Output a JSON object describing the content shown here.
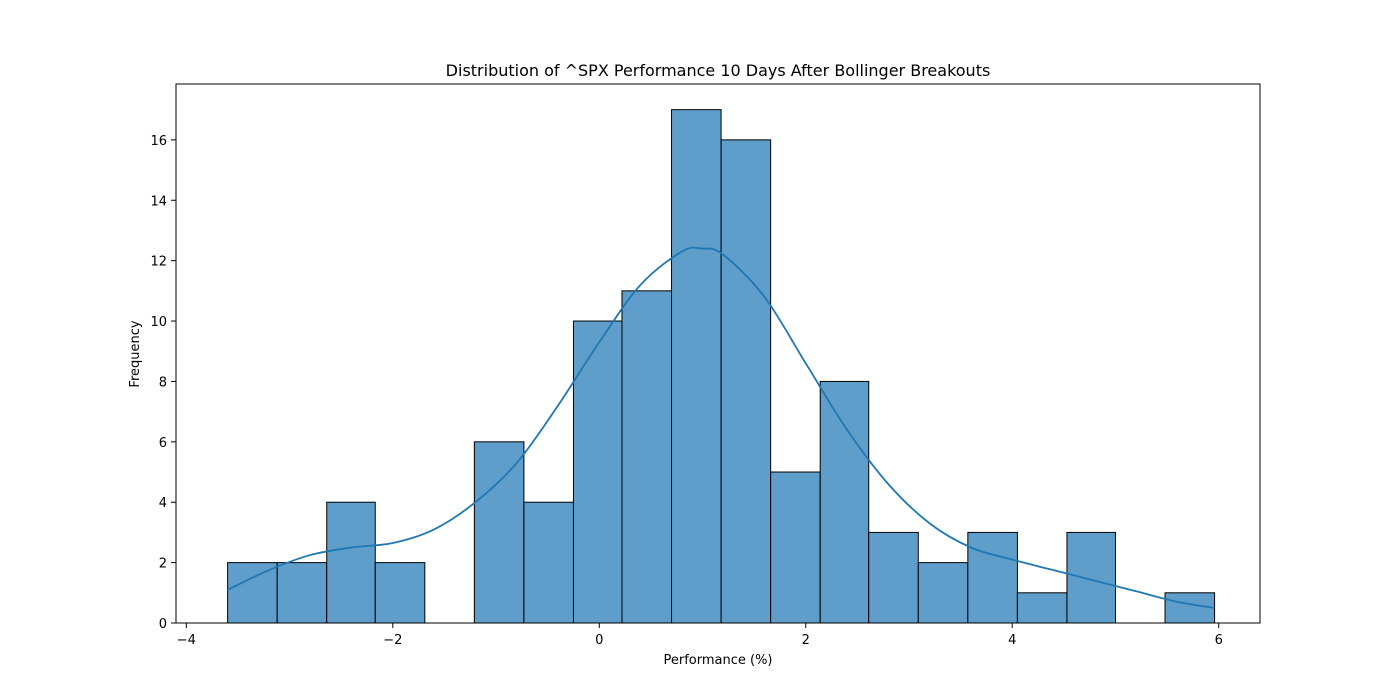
{
  "chart_data": {
    "type": "bar",
    "title": "Distribution of ^SPX Performance 10 Days After Bollinger Breakouts",
    "xlabel": "Performance (%)",
    "ylabel": "Frequency",
    "xlim": [
      -4.1,
      6.4
    ],
    "ylim": [
      0,
      17.85
    ],
    "xticks": [
      -4,
      -2,
      0,
      2,
      4,
      6
    ],
    "xtick_labels": [
      "−4",
      "−2",
      "0",
      "2",
      "4",
      "6"
    ],
    "yticks": [
      0,
      2,
      4,
      6,
      8,
      10,
      12,
      14,
      16
    ],
    "grid": false,
    "bin_edges": [
      -3.6,
      -3.12,
      -2.64,
      -2.17,
      -1.69,
      -1.21,
      -0.73,
      -0.25,
      0.22,
      0.7,
      1.18,
      1.66,
      2.14,
      2.61,
      3.09,
      3.57,
      4.05,
      4.53,
      5.0,
      5.48,
      5.96
    ],
    "values": [
      2,
      2,
      4,
      2,
      0,
      6,
      4,
      10,
      11,
      17,
      16,
      5,
      8,
      3,
      2,
      3,
      1,
      3,
      0,
      1
    ],
    "bar_color": "#5f9ecb",
    "bar_edge_color": "#000000",
    "kde": {
      "color": "#1f77b4",
      "x": [
        -3.6,
        -3.2,
        -2.8,
        -2.4,
        -2.0,
        -1.6,
        -1.2,
        -0.8,
        -0.4,
        0.0,
        0.4,
        0.8,
        1.0,
        1.2,
        1.6,
        2.0,
        2.4,
        2.8,
        3.2,
        3.6,
        4.0,
        4.4,
        4.8,
        5.2,
        5.6,
        5.96
      ],
      "y": [
        1.1,
        1.75,
        2.25,
        2.5,
        2.65,
        3.1,
        4.0,
        5.3,
        7.2,
        9.3,
        11.2,
        12.3,
        12.4,
        12.2,
        10.8,
        8.6,
        6.4,
        4.6,
        3.3,
        2.5,
        2.1,
        1.75,
        1.4,
        1.05,
        0.7,
        0.5
      ]
    }
  }
}
